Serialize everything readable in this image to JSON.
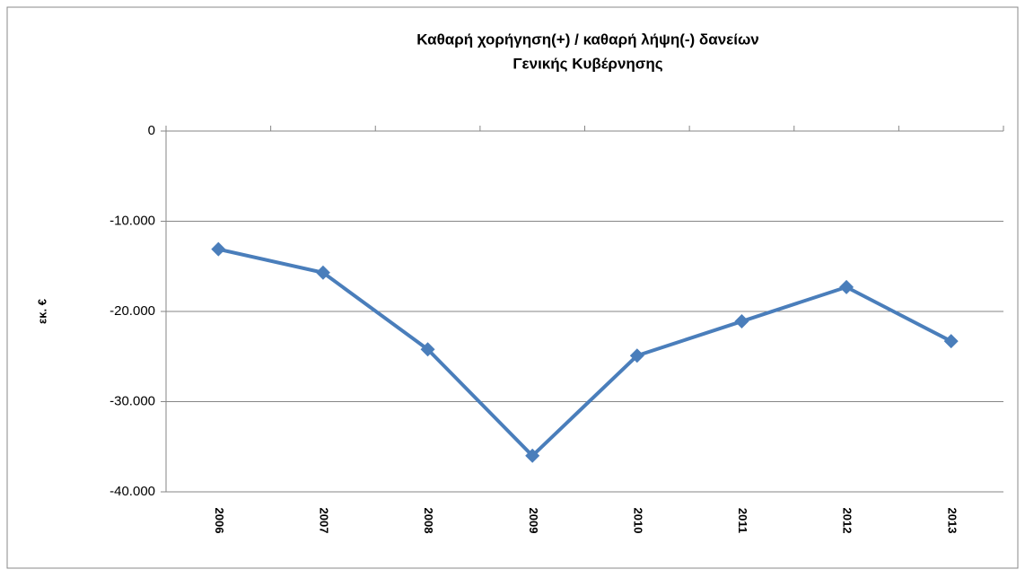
{
  "chart_data": {
    "type": "line",
    "title": [
      "Καθαρή χορήγηση(+) / καθαρή λήψη(-) δανείων",
      "Γενικής Κυβέρνησης"
    ],
    "y_label": "εκ. €",
    "categories": [
      "2006",
      "2007",
      "2008",
      "2009",
      "2010",
      "2011",
      "2012",
      "2013"
    ],
    "series": [
      {
        "name": "Καθαρή χορήγηση(+) / καθαρή λήψη(-) δανείων",
        "color": "#4a7ebb",
        "values": [
          -13100,
          -15700,
          -24200,
          -36000,
          -24900,
          -21100,
          -17300,
          -23300
        ]
      }
    ],
    "ylim": [
      -40000,
      0
    ],
    "yticks": [
      {
        "value": -40000,
        "label": "-40.000"
      },
      {
        "value": -30000,
        "label": "-30.000"
      },
      {
        "value": -20000,
        "label": "-20.000"
      },
      {
        "value": -10000,
        "label": "-10.000"
      },
      0
    ],
    "grid": true
  }
}
